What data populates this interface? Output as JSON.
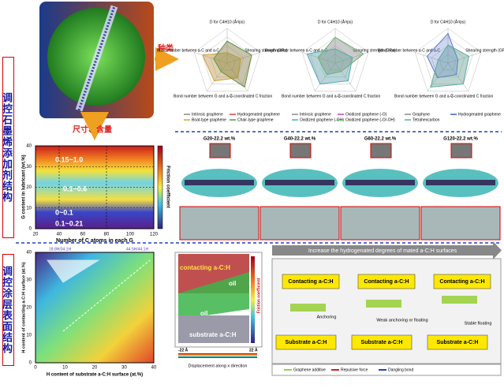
{
  "side_labels": [
    "调控石墨烯添加剂结构",
    "调控涂层表面结构"
  ],
  "arrows": {
    "type": "种类",
    "size": "尺寸、含量"
  },
  "contour_top": {
    "y_label": "G content in lubricant (wt.%)",
    "x_label": "Number of C atoms in each G",
    "x_ticks": [
      "20",
      "40",
      "60",
      "80",
      "100",
      "120"
    ],
    "y_ticks": [
      "0",
      "10",
      "20",
      "30",
      "40"
    ],
    "regions": [
      "0.15~1.0",
      "0.1~0.6",
      "0~0.1",
      "0.1~0.21"
    ],
    "colorbar_label": "Friction coefficient"
  },
  "radar": {
    "axes": [
      "D for C4H10 (Å²/ps)",
      "Shearing strength (GPa)",
      "2-coordinated C fraction",
      "Bond number between G and a-C",
      "Bond number between a-C and a-C"
    ],
    "legends": [
      [
        "Intrinsic graphene",
        "Hydrogenated graphene",
        "Boat-type graphene",
        "Chair-type graphene"
      ],
      [
        "Intrinsic graphene",
        "Oxidized graphene (-O)",
        "Oxidized graphene (-OH)",
        "Oxidized graphene (-O/-OH)"
      ],
      [
        "Graphyne",
        "Hydrogenated graphene",
        "Tetrahexcarbon"
      ]
    ]
  },
  "snapshots": [
    "G20-22.2 wt.%",
    "G40-22.2 wt.%",
    "G60-22.2 wt.%",
    "G120-22.2 wt.%"
  ],
  "contour_bottom": {
    "y_label": "H content of contacting a-C:H surface (at.%)",
    "x_label": "H content of substrate a-C:H surface (at.%)",
    "x_ticks": [
      "0",
      "10",
      "20",
      "30",
      "40"
    ],
    "y_ticks": [
      "0",
      "10",
      "20",
      "30",
      "40"
    ],
    "top_labels": [
      "18.8H/34.1H",
      "44.5H/44.1H"
    ]
  },
  "md_panel": {
    "top": "contacting a-C:H",
    "oil": "oil",
    "bottom": "substrate a-C:H",
    "bar_label": "Friction coefficient",
    "x_label": "Displacement along x direction",
    "left": "-22 Å",
    "right": "22 Å"
  },
  "mechanism": {
    "banner": "Increase the hydrogenated degrees of mated a-C:H surfaces",
    "top": "Contacting a-C:H",
    "bottom": "Substrate a-C:H",
    "notes": [
      "Anchoring",
      "Weak anchoring or floating",
      "Stable floating"
    ],
    "legend": [
      "Graphene additive",
      "Repulsive force",
      "Dangling bond"
    ]
  }
}
